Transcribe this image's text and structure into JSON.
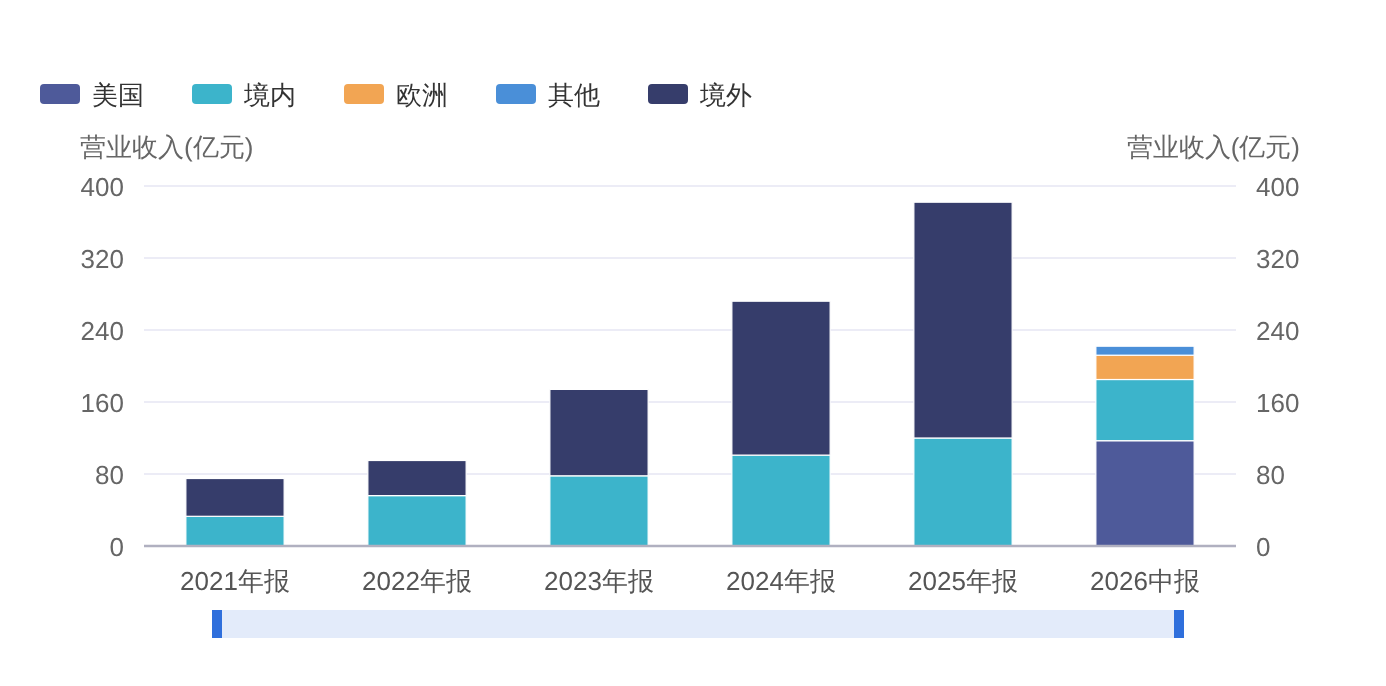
{
  "chart_data": {
    "type": "bar",
    "stacked": true,
    "categories": [
      "2021年报",
      "2022年报",
      "2023年报",
      "2024年报",
      "2025年报",
      "2026中报"
    ],
    "series": [
      {
        "name": "美国",
        "color": "#4e5a9a",
        "values": [
          null,
          null,
          null,
          null,
          null,
          117
        ]
      },
      {
        "name": "境内",
        "color": "#3cb4cb",
        "values": [
          33,
          56,
          78,
          101,
          120,
          68
        ]
      },
      {
        "name": "欧洲",
        "color": "#f2a553",
        "values": [
          null,
          null,
          null,
          null,
          null,
          27
        ]
      },
      {
        "name": "其他",
        "color": "#4a8fd8",
        "values": [
          null,
          null,
          null,
          null,
          null,
          10
        ]
      },
      {
        "name": "境外",
        "color": "#363d6b",
        "values": [
          42,
          39,
          96,
          171,
          262,
          null
        ]
      }
    ],
    "ylabel": "营业收入(亿元)",
    "y2label": "营业收入(亿元)",
    "ylim": [
      0,
      400
    ],
    "yticks": [
      0,
      80,
      160,
      240,
      320,
      400
    ],
    "y2lim": [
      0,
      400
    ],
    "y2ticks": [
      0,
      80,
      160,
      240,
      320,
      400
    ],
    "grid": "y",
    "legend": "top left"
  }
}
